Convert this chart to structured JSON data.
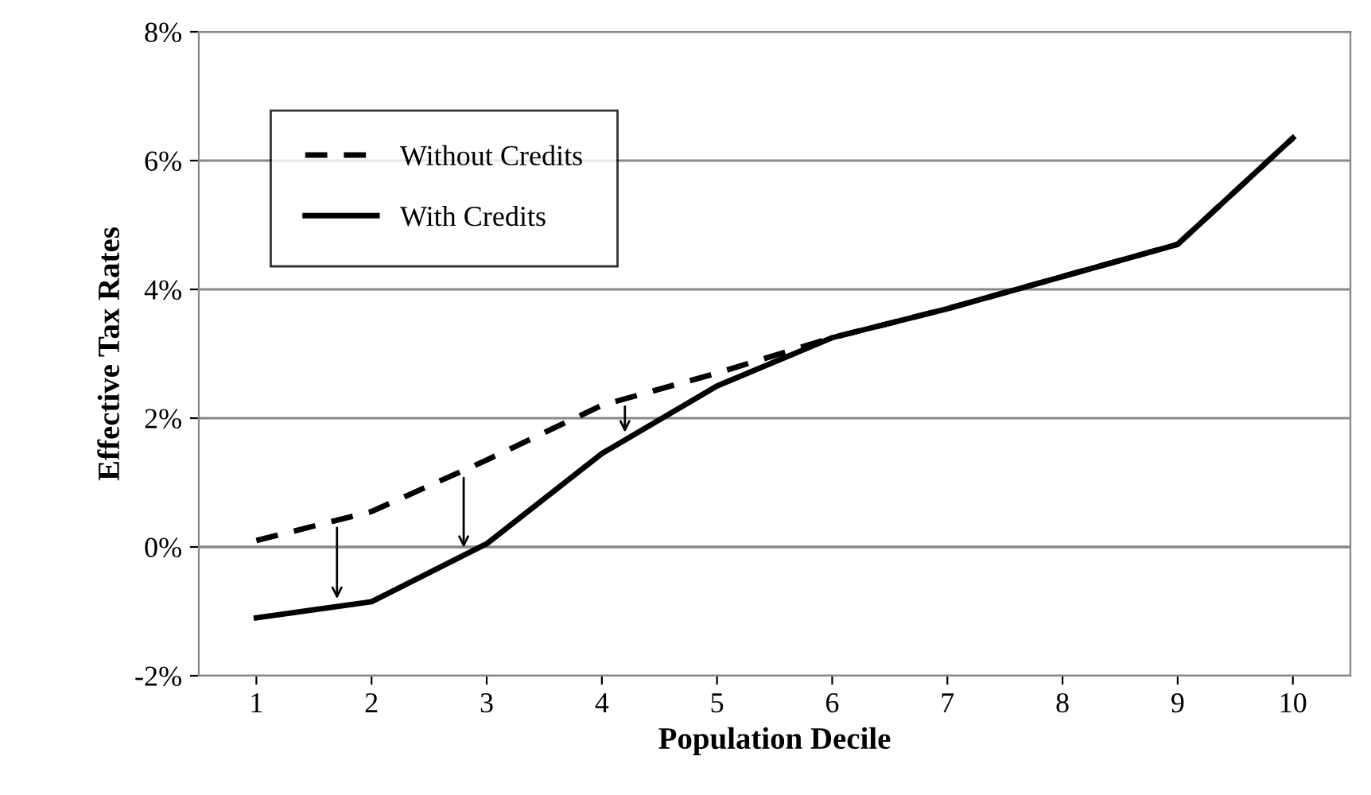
{
  "chart_data": {
    "type": "line",
    "xlabel": "Population Decile",
    "ylabel": "Effective Tax Rates",
    "categories": [
      "1",
      "2",
      "3",
      "4",
      "5",
      "6",
      "7",
      "8",
      "9",
      "10"
    ],
    "series": [
      {
        "name": "Without Credits",
        "color": "#000000",
        "line_style": "dashed",
        "values": [
          0.1,
          0.55,
          1.35,
          2.2,
          2.7,
          3.25,
          3.7,
          4.2,
          4.7,
          6.35
        ]
      },
      {
        "name": "With Credits",
        "color": "#000000",
        "line_style": "solid",
        "values": [
          -1.1,
          -0.85,
          0.05,
          1.45,
          2.5,
          3.25,
          3.7,
          4.2,
          4.7,
          6.35
        ]
      }
    ],
    "ylim": [
      -2,
      8
    ],
    "yticks": [
      {
        "value": -2,
        "label": "-2%"
      },
      {
        "value": 0,
        "label": "0%"
      },
      {
        "value": 2,
        "label": "2%"
      },
      {
        "value": 4,
        "label": "4%"
      },
      {
        "value": 6,
        "label": "6%"
      },
      {
        "value": 8,
        "label": "8%"
      }
    ],
    "grid": "y",
    "legend": "top left",
    "marker": "none"
  }
}
